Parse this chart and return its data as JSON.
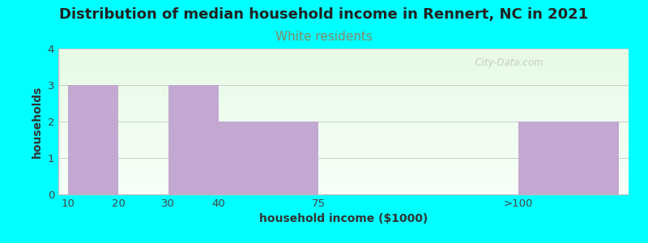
{
  "title": "Distribution of median household income in Rennert, NC in 2021",
  "subtitle": "White residents",
  "xlabel": "household income ($1000)",
  "ylabel": "households",
  "background_color": "#00FFFF",
  "bar_color": "#C3A8D1",
  "categories": [
    "10",
    "20",
    "30",
    "40",
    "75",
    ">100"
  ],
  "values": [
    3,
    0,
    3,
    2,
    0,
    2
  ],
  "ylim": [
    0,
    4
  ],
  "yticks": [
    0,
    1,
    2,
    3,
    4
  ],
  "title_fontsize": 13,
  "subtitle_fontsize": 11,
  "subtitle_color": "#7B8B6F",
  "axis_label_fontsize": 10,
  "watermark": "  City-Data.com",
  "grad_top": "#e6f5e6",
  "grad_bottom": "#f8fff8"
}
